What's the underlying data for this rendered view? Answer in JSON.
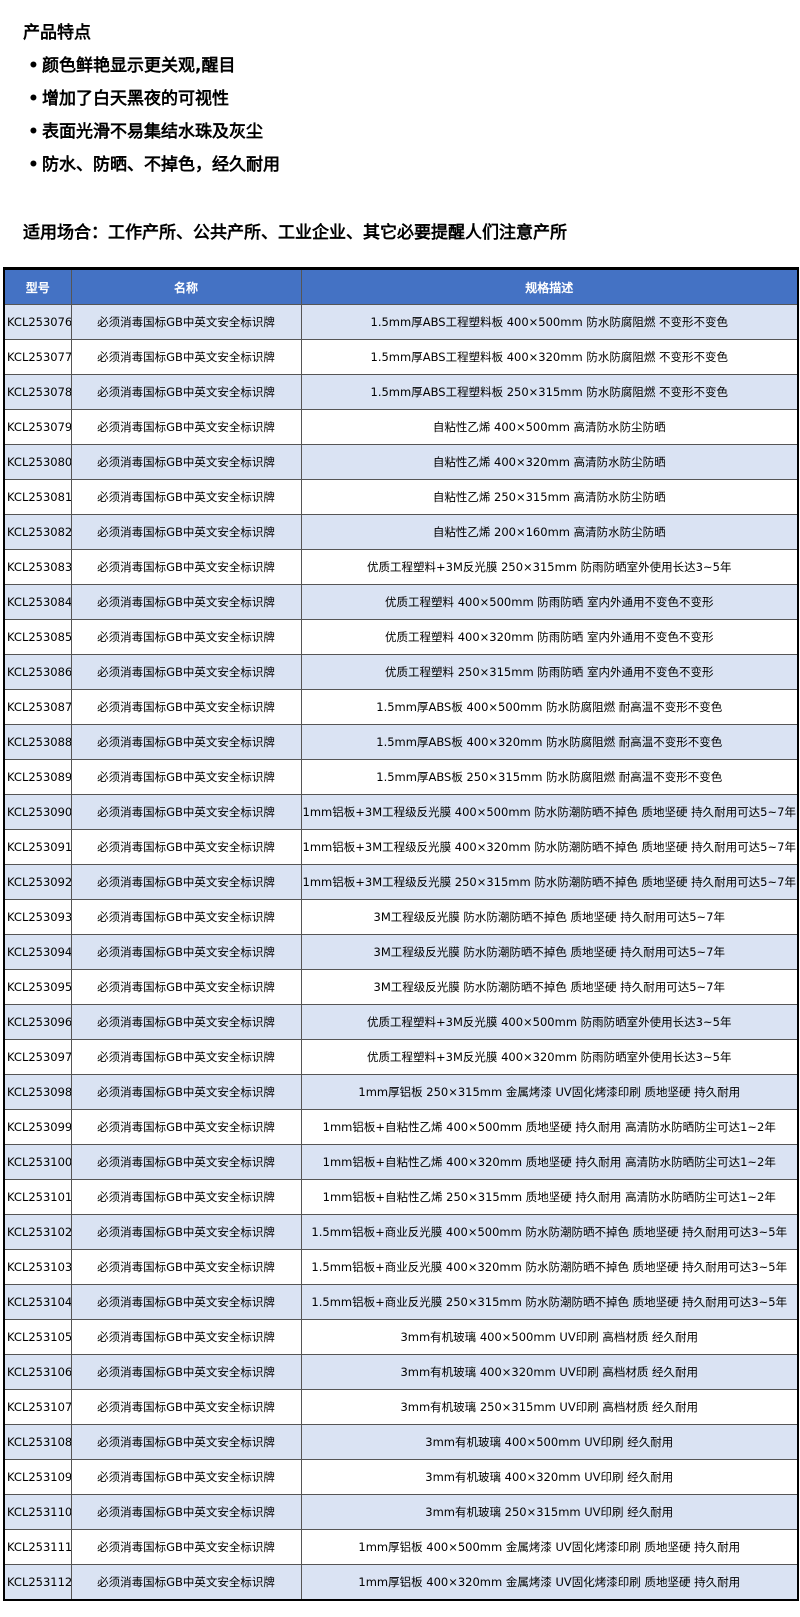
{
  "features": {
    "title": "产品特点",
    "bullets": [
      "颜色鲜艳显示更关观,醒目",
      "增加了白天黑夜的可视性",
      "表面光滑不易集结水珠及灰尘",
      "防水、防晒、不掉色，经久耐用"
    ]
  },
  "usage": "适用场合：工作产所、公共产所、工业企业、其它必要提醒人们注意产所",
  "table": {
    "headers": [
      "型号",
      "名称",
      "规格描述"
    ],
    "header_color": "#4472c4",
    "stripe_color": "#dae3f3",
    "rows": [
      [
        "KCL253076",
        "必须消毒国标GB中英文安全标识牌",
        "1.5mm厚ABS工程塑料板 400×500mm 防水防腐阻燃 不变形不变色"
      ],
      [
        "KCL253077",
        "必须消毒国标GB中英文安全标识牌",
        "1.5mm厚ABS工程塑料板 400×320mm 防水防腐阻燃 不变形不变色"
      ],
      [
        "KCL253078",
        "必须消毒国标GB中英文安全标识牌",
        "1.5mm厚ABS工程塑料板 250×315mm 防水防腐阻燃 不变形不变色"
      ],
      [
        "KCL253079",
        "必须消毒国标GB中英文安全标识牌",
        "自粘性乙烯 400×500mm 高清防水防尘防晒"
      ],
      [
        "KCL253080",
        "必须消毒国标GB中英文安全标识牌",
        "自粘性乙烯 400×320mm 高清防水防尘防晒"
      ],
      [
        "KCL253081",
        "必须消毒国标GB中英文安全标识牌",
        "自粘性乙烯 250×315mm 高清防水防尘防晒"
      ],
      [
        "KCL253082",
        "必须消毒国标GB中英文安全标识牌",
        "自粘性乙烯 200×160mm 高清防水防尘防晒"
      ],
      [
        "KCL253083",
        "必须消毒国标GB中英文安全标识牌",
        "优质工程塑料+3M反光膜 250×315mm 防雨防晒室外使用长达3~5年"
      ],
      [
        "KCL253084",
        "必须消毒国标GB中英文安全标识牌",
        "优质工程塑料 400×500mm 防雨防晒 室内外通用不变色不变形"
      ],
      [
        "KCL253085",
        "必须消毒国标GB中英文安全标识牌",
        "优质工程塑料 400×320mm 防雨防晒 室内外通用不变色不变形"
      ],
      [
        "KCL253086",
        "必须消毒国标GB中英文安全标识牌",
        "优质工程塑料 250×315mm 防雨防晒 室内外通用不变色不变形"
      ],
      [
        "KCL253087",
        "必须消毒国标GB中英文安全标识牌",
        "1.5mm厚ABS板 400×500mm 防水防腐阻燃 耐高温不变形不变色"
      ],
      [
        "KCL253088",
        "必须消毒国标GB中英文安全标识牌",
        "1.5mm厚ABS板 400×320mm 防水防腐阻燃 耐高温不变形不变色"
      ],
      [
        "KCL253089",
        "必须消毒国标GB中英文安全标识牌",
        "1.5mm厚ABS板 250×315mm 防水防腐阻燃 耐高温不变形不变色"
      ],
      [
        "KCL253090",
        "必须消毒国标GB中英文安全标识牌",
        "1mm铝板+3M工程级反光膜 400×500mm 防水防潮防晒不掉色 质地坚硬 持久耐用可达5~7年"
      ],
      [
        "KCL253091",
        "必须消毒国标GB中英文安全标识牌",
        "1mm铝板+3M工程级反光膜 400×320mm 防水防潮防晒不掉色 质地坚硬 持久耐用可达5~7年"
      ],
      [
        "KCL253092",
        "必须消毒国标GB中英文安全标识牌",
        "1mm铝板+3M工程级反光膜 250×315mm 防水防潮防晒不掉色 质地坚硬 持久耐用可达5~7年"
      ],
      [
        "KCL253093",
        "必须消毒国标GB中英文安全标识牌",
        "3M工程级反光膜 防水防潮防晒不掉色 质地坚硬 持久耐用可达5~7年"
      ],
      [
        "KCL253094",
        "必须消毒国标GB中英文安全标识牌",
        "3M工程级反光膜 防水防潮防晒不掉色 质地坚硬 持久耐用可达5~7年"
      ],
      [
        "KCL253095",
        "必须消毒国标GB中英文安全标识牌",
        "3M工程级反光膜 防水防潮防晒不掉色 质地坚硬 持久耐用可达5~7年"
      ],
      [
        "KCL253096",
        "必须消毒国标GB中英文安全标识牌",
        "优质工程塑料+3M反光膜 400×500mm 防雨防晒室外使用长达3~5年"
      ],
      [
        "KCL253097",
        "必须消毒国标GB中英文安全标识牌",
        "优质工程塑料+3M反光膜 400×320mm 防雨防晒室外使用长达3~5年"
      ],
      [
        "KCL253098",
        "必须消毒国标GB中英文安全标识牌",
        "1mm厚铝板 250×315mm 金属烤漆 UV固化烤漆印刷 质地坚硬 持久耐用"
      ],
      [
        "KCL253099",
        "必须消毒国标GB中英文安全标识牌",
        "1mm铝板+自粘性乙烯 400×500mm 质地坚硬 持久耐用 高清防水防晒防尘可达1~2年"
      ],
      [
        "KCL253100",
        "必须消毒国标GB中英文安全标识牌",
        "1mm铝板+自粘性乙烯 400×320mm 质地坚硬 持久耐用 高清防水防晒防尘可达1~2年"
      ],
      [
        "KCL253101",
        "必须消毒国标GB中英文安全标识牌",
        "1mm铝板+自粘性乙烯 250×315mm 质地坚硬 持久耐用 高清防水防晒防尘可达1~2年"
      ],
      [
        "KCL253102",
        "必须消毒国标GB中英文安全标识牌",
        "1.5mm铝板+商业反光膜 400×500mm 防水防潮防晒不掉色 质地坚硬 持久耐用可达3~5年"
      ],
      [
        "KCL253103",
        "必须消毒国标GB中英文安全标识牌",
        "1.5mm铝板+商业反光膜 400×320mm 防水防潮防晒不掉色 质地坚硬 持久耐用可达3~5年"
      ],
      [
        "KCL253104",
        "必须消毒国标GB中英文安全标识牌",
        "1.5mm铝板+商业反光膜 250×315mm 防水防潮防晒不掉色 质地坚硬 持久耐用可达3~5年"
      ],
      [
        "KCL253105",
        "必须消毒国标GB中英文安全标识牌",
        "3mm有机玻璃 400×500mm UV印刷 高档材质 经久耐用"
      ],
      [
        "KCL253106",
        "必须消毒国标GB中英文安全标识牌",
        "3mm有机玻璃 400×320mm UV印刷 高档材质 经久耐用"
      ],
      [
        "KCL253107",
        "必须消毒国标GB中英文安全标识牌",
        "3mm有机玻璃 250×315mm UV印刷 高档材质 经久耐用"
      ],
      [
        "KCL253108",
        "必须消毒国标GB中英文安全标识牌",
        "3mm有机玻璃 400×500mm UV印刷 经久耐用"
      ],
      [
        "KCL253109",
        "必须消毒国标GB中英文安全标识牌",
        "3mm有机玻璃 400×320mm UV印刷 经久耐用"
      ],
      [
        "KCL253110",
        "必须消毒国标GB中英文安全标识牌",
        "3mm有机玻璃 250×315mm UV印刷 经久耐用"
      ],
      [
        "KCL253111",
        "必须消毒国标GB中英文安全标识牌",
        "1mm厚铝板 400×500mm 金属烤漆 UV固化烤漆印刷 质地坚硬 持久耐用"
      ],
      [
        "KCL253112",
        "必须消毒国标GB中英文安全标识牌",
        "1mm厚铝板 400×320mm 金属烤漆 UV固化烤漆印刷 质地坚硬 持久耐用"
      ]
    ]
  }
}
